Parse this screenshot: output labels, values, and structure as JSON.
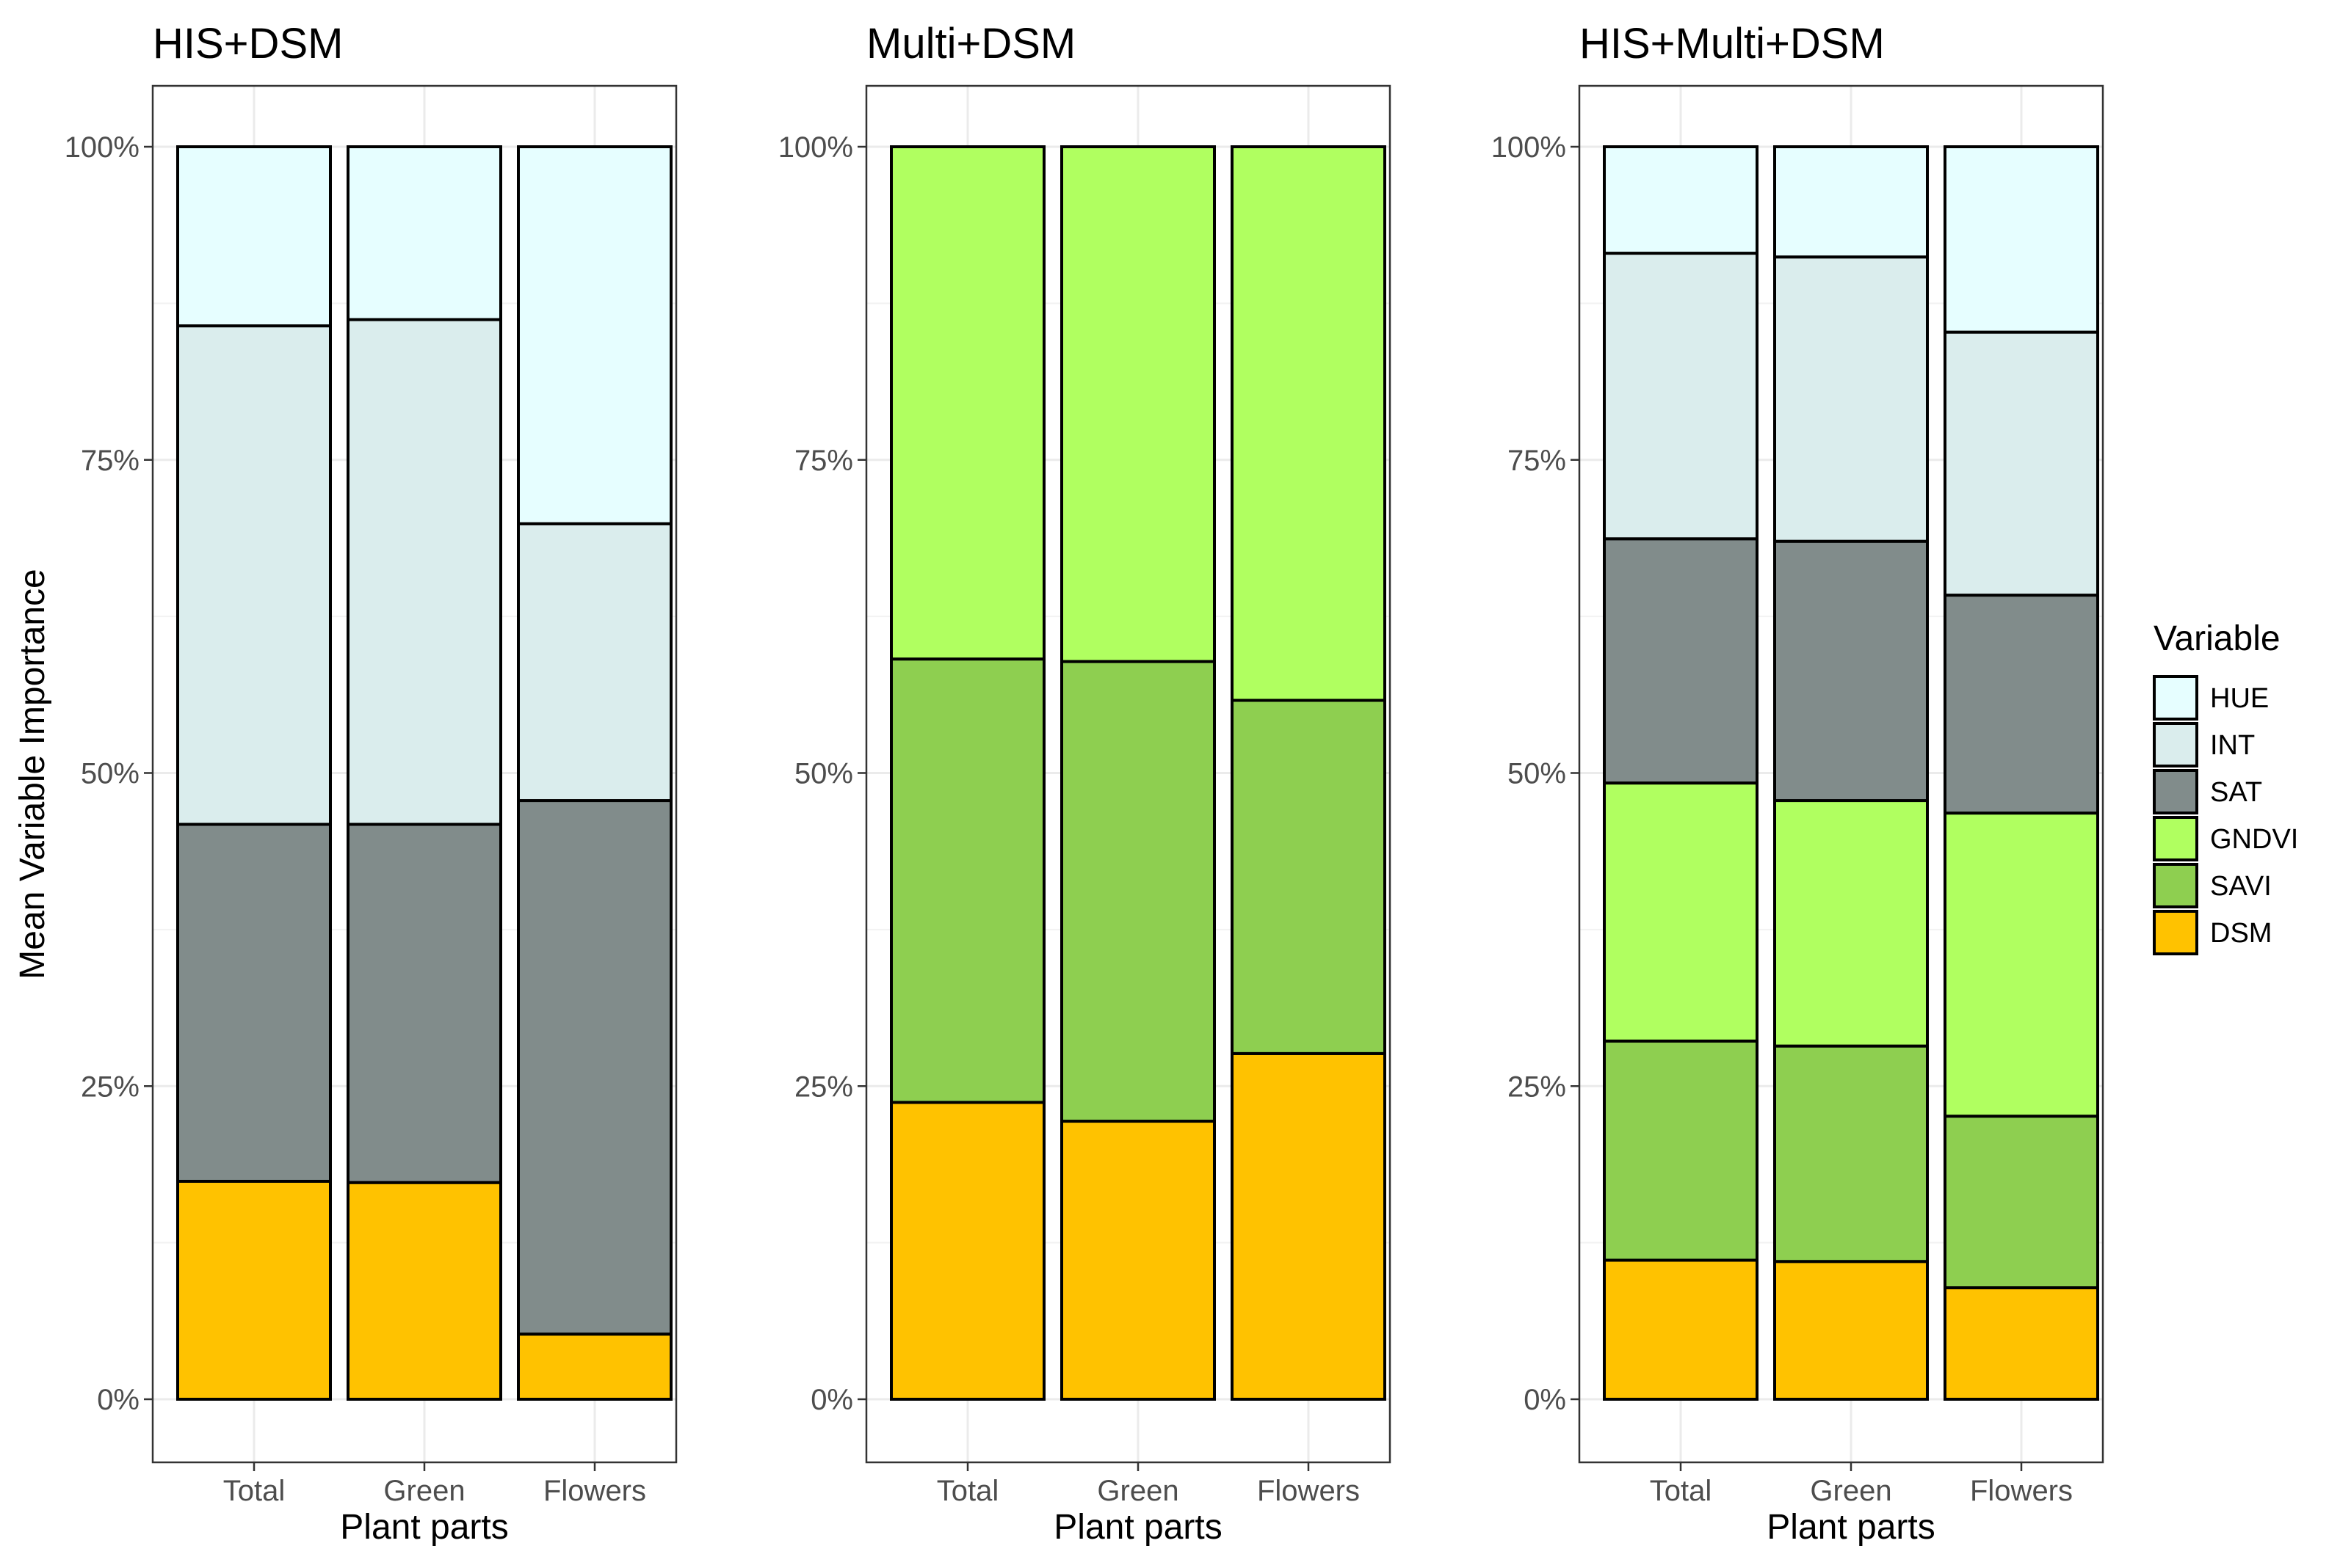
{
  "chart_data": {
    "type": "bar",
    "stacked": true,
    "ylabel": "Mean Variable Importance",
    "xlabel": "Plant parts",
    "categories": [
      "Total",
      "Green",
      "Flowers"
    ],
    "ylim": [
      0,
      100
    ],
    "yticks": [
      "0%",
      "25%",
      "50%",
      "75%",
      "100%"
    ],
    "ytick_values": [
      0,
      25,
      50,
      75,
      100
    ],
    "legend": {
      "title": "Variable",
      "position": "right",
      "entries": [
        "HUE",
        "INT",
        "SAT",
        "GNDVI",
        "SAVI",
        "DSM"
      ]
    },
    "colors": {
      "HUE": "#e6feff",
      "INT": "#daeded",
      "SAT": "#818c8b",
      "GNDVI": "#b0ff60",
      "SAVI": "#8ecf50",
      "DSM": "#ffc200"
    },
    "panels": [
      {
        "title": "HIS+DSM",
        "series": [
          {
            "name": "DSM",
            "values": [
              17.4,
              17.3,
              5.2
            ]
          },
          {
            "name": "SAT",
            "values": [
              28.5,
              28.6,
              42.6
            ]
          },
          {
            "name": "INT",
            "values": [
              39.8,
              40.3,
              22.1
            ]
          },
          {
            "name": "HUE",
            "values": [
              14.3,
              13.8,
              30.1
            ]
          }
        ]
      },
      {
        "title": "Multi+DSM",
        "series": [
          {
            "name": "DSM",
            "values": [
              23.7,
              22.2,
              27.6
            ]
          },
          {
            "name": "SAVI",
            "values": [
              35.4,
              36.7,
              28.2
            ]
          },
          {
            "name": "GNDVI",
            "values": [
              40.9,
              41.1,
              44.2
            ]
          }
        ]
      },
      {
        "title": "HIS+Multi+DSM",
        "series": [
          {
            "name": "DSM",
            "values": [
              11.1,
              11.0,
              8.9
            ]
          },
          {
            "name": "SAVI",
            "values": [
              17.5,
              17.2,
              13.7
            ]
          },
          {
            "name": "GNDVI",
            "values": [
              20.6,
              19.6,
              24.2
            ]
          },
          {
            "name": "SAT",
            "values": [
              19.5,
              20.7,
              17.4
            ]
          },
          {
            "name": "INT",
            "values": [
              22.8,
              22.7,
              21.0
            ]
          },
          {
            "name": "HUE",
            "values": [
              8.5,
              8.8,
              14.8
            ]
          }
        ]
      }
    ]
  }
}
